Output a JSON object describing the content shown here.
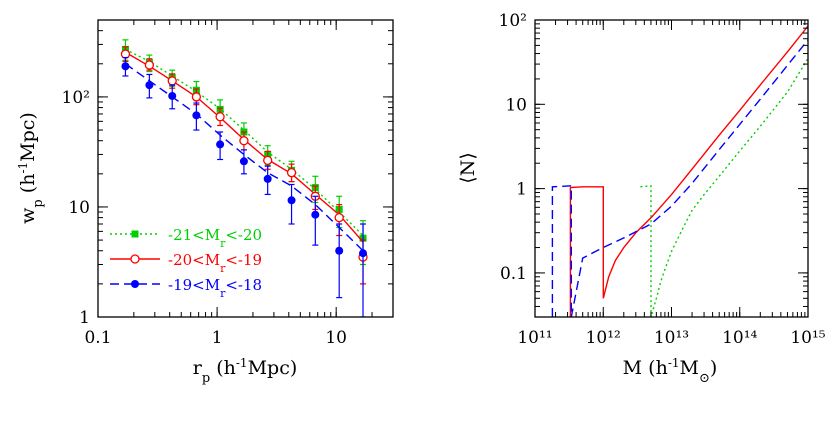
{
  "chart_data": [
    {
      "type": "scatter",
      "xlabel": "r_p (h^-1 Mpc)",
      "ylabel": "w_p (h^-1 Mpc)",
      "xscale": "log",
      "yscale": "log",
      "xlim": [
        0.1,
        30
      ],
      "ylim": [
        1,
        500
      ],
      "grid": false,
      "legend": "bottom-left",
      "x_ticks": [
        {
          "value": 0.1,
          "label": "0.1"
        },
        {
          "value": 1,
          "label": "1"
        },
        {
          "value": 10,
          "label": "10"
        }
      ],
      "y_ticks": [
        {
          "value": 1,
          "label": "1"
        },
        {
          "value": 10,
          "label": "10"
        },
        {
          "value": 100,
          "label": "10²"
        }
      ],
      "series": [
        {
          "name": "-21<Mr<-20",
          "color": "#00d000",
          "line": "dotted",
          "marker": "filled-square",
          "x": [
            0.17,
            0.27,
            0.42,
            0.67,
            1.06,
            1.68,
            2.66,
            4.22,
            6.68,
            10.6,
            16.8
          ],
          "y": [
            270,
            205,
            150,
            115,
            77,
            48,
            30,
            21.5,
            15,
            9.5,
            5.2
          ],
          "y_err_low": [
            215,
            170,
            125,
            95,
            62,
            39,
            24,
            17,
            11,
            6.5,
            3
          ],
          "y_err_high": [
            330,
            240,
            175,
            138,
            94,
            58,
            36,
            26,
            19,
            12.5,
            7.5
          ],
          "model": [
            270,
            210,
            155,
            112,
            78,
            50,
            31.5,
            22,
            14.5,
            9,
            5.5
          ]
        },
        {
          "name": "-20<Mr<-19",
          "color": "#ff0000",
          "line": "solid",
          "marker": "open-circle",
          "x": [
            0.17,
            0.27,
            0.42,
            0.67,
            1.06,
            1.68,
            2.66,
            4.22,
            6.68,
            10.6,
            16.8
          ],
          "y": [
            245,
            195,
            140,
            100,
            66,
            40,
            26.5,
            20.5,
            12.5,
            8,
            3.5
          ],
          "y_err_low": [
            210,
            175,
            120,
            85,
            55,
            33,
            22,
            17,
            9.5,
            5.5,
            2
          ],
          "y_err_high": [
            285,
            222,
            162,
            118,
            79,
            48,
            32,
            24.5,
            15.5,
            10.5,
            5
          ],
          "model": [
            255,
            190,
            140,
            100,
            65,
            41,
            27,
            20,
            13,
            8.5,
            4.8
          ]
        },
        {
          "name": "-19<Mr<-18",
          "color": "#0000ff",
          "line": "dashed",
          "marker": "filled-circle",
          "x": [
            0.17,
            0.27,
            0.42,
            0.67,
            1.06,
            1.68,
            2.66,
            4.22,
            6.68,
            10.6,
            16.8
          ],
          "y": [
            190,
            128,
            102,
            68,
            37,
            26,
            18,
            11.5,
            8.5,
            4,
            3.8
          ],
          "y_err_low": [
            155,
            98,
            78,
            50,
            27,
            20,
            13,
            7,
            4.5,
            1.5,
            1
          ],
          "y_err_high": [
            228,
            160,
            128,
            88,
            48,
            33,
            23.5,
            16,
            12.5,
            7,
            7
          ],
          "model": [
            200,
            140,
            100,
            70,
            45,
            30,
            20.5,
            15.5,
            10.5,
            6.5,
            4
          ]
        }
      ]
    },
    {
      "type": "line",
      "xlabel": "M (h^-1 M_⊙)",
      "ylabel": "⟨N⟩",
      "xscale": "log",
      "yscale": "log",
      "xlim": [
        100000000000.0,
        1000000000000000.0
      ],
      "ylim": [
        0.03,
        100
      ],
      "grid": false,
      "legend": "none",
      "x_ticks": [
        {
          "value": 100000000000.0,
          "label": "10¹¹"
        },
        {
          "value": 1000000000000.0,
          "label": "10¹²"
        },
        {
          "value": 10000000000000.0,
          "label": "10¹³"
        },
        {
          "value": 100000000000000.0,
          "label": "10¹⁴"
        },
        {
          "value": 1000000000000000.0,
          "label": "10¹⁵"
        }
      ],
      "y_ticks": [
        {
          "value": 0.1,
          "label": "0.1"
        },
        {
          "value": 1,
          "label": "1"
        },
        {
          "value": 10,
          "label": "10"
        },
        {
          "value": 100,
          "label": "10²"
        }
      ],
      "series": [
        {
          "color": "#00d000",
          "line": "dotted",
          "x": [
            3500000000000.0,
            3500000000000.0,
            5000000000000.0,
            5000000000000.0,
            6000000000000.0,
            7000000000000.0,
            8000000000000.0,
            10000000000000.0,
            15000000000000.0,
            20000000000000.0,
            30000000000000.0,
            50000000000000.0,
            100000000000000.0,
            200000000000000.0,
            500000000000000.0,
            1000000000000000.0
          ],
          "y": [
            1.05,
            1.05,
            1.08,
            0.03,
            0.05,
            0.08,
            0.11,
            0.18,
            0.35,
            0.55,
            0.85,
            1.4,
            2.8,
            5.5,
            14,
            35
          ]
        },
        {
          "color": "#ff0000",
          "line": "solid",
          "x": [
            330000000000.0,
            330000000000.0,
            500000000000.0,
            1000000000000.0,
            1000000000000.0,
            1200000000000.0,
            1500000000000.0,
            2000000000000.0,
            3000000000000.0,
            5000000000000.0,
            10000000000000.0,
            20000000000000.0,
            50000000000000.0,
            100000000000000.0,
            200000000000000.0,
            500000000000000.0,
            1000000000000000.0
          ],
          "y": [
            0.03,
            1.03,
            1.05,
            1.05,
            0.05,
            0.09,
            0.14,
            0.2,
            0.3,
            0.45,
            0.85,
            1.7,
            4.3,
            8.5,
            17,
            42,
            85
          ]
        },
        {
          "color": "#0000ff",
          "line": "dashed",
          "x": [
            180000000000.0,
            180000000000.0,
            340000000000.0,
            340000000000.0,
            500000000000.0,
            1000000000000.0,
            2000000000000.0,
            5000000000000.0,
            10000000000000.0,
            20000000000000.0,
            50000000000000.0,
            100000000000000.0,
            200000000000000.0,
            500000000000000.0,
            1000000000000000.0
          ],
          "y": [
            0.03,
            1.05,
            1.08,
            0.03,
            0.15,
            0.2,
            0.26,
            0.38,
            0.62,
            1.15,
            2.9,
            5.8,
            11.5,
            29,
            58
          ]
        }
      ]
    }
  ]
}
